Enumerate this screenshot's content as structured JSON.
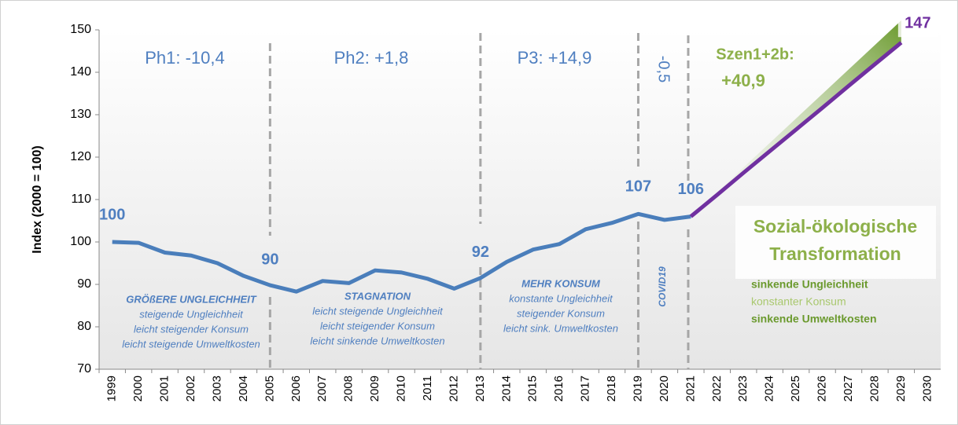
{
  "chart_data": {
    "type": "line",
    "y_label": "Index (2000 = 100)",
    "categories": [
      "1999",
      "2000",
      "2001",
      "2002",
      "2003",
      "2004",
      "2005",
      "2006",
      "2007",
      "2008",
      "2009",
      "2010",
      "2011",
      "2012",
      "2013",
      "2014",
      "2015",
      "2016",
      "2017",
      "2018",
      "2019",
      "2020",
      "2021",
      "2022",
      "2023",
      "2024",
      "2025",
      "2026",
      "2027",
      "2028",
      "2029",
      "2030"
    ],
    "series": [
      {
        "name": "Index",
        "color": "#4a7ebb",
        "values": [
          100,
          99.8,
          97.5,
          96.8,
          95,
          92,
          89.8,
          88.3,
          90.8,
          90.3,
          93.3,
          92.8,
          91.3,
          89,
          91.5,
          95.3,
          98.2,
          99.5,
          103,
          104.5,
          106.6,
          105.2,
          106,
          null,
          null,
          null,
          null,
          null,
          null,
          null,
          null,
          null
        ],
        "value_labels": [
          "100",
          null,
          null,
          null,
          null,
          null,
          "90",
          null,
          null,
          null,
          null,
          null,
          null,
          null,
          "92",
          null,
          null,
          null,
          null,
          null,
          "107",
          null,
          "106",
          null,
          null,
          null,
          null,
          null,
          null,
          null,
          null,
          null
        ]
      },
      {
        "name": "Szen1+2b",
        "color": "#7030a0",
        "values": [
          null,
          null,
          null,
          null,
          null,
          null,
          null,
          null,
          null,
          null,
          null,
          null,
          null,
          null,
          null,
          null,
          null,
          null,
          null,
          null,
          null,
          null,
          106,
          111.1,
          116.3,
          121.4,
          126.5,
          131.6,
          136.8,
          141.9,
          147,
          null
        ],
        "value_labels": [
          null,
          null,
          null,
          null,
          null,
          null,
          null,
          null,
          null,
          null,
          null,
          null,
          null,
          null,
          null,
          null,
          null,
          null,
          null,
          null,
          null,
          null,
          null,
          null,
          null,
          null,
          null,
          null,
          null,
          null,
          "147",
          null
        ]
      }
    ],
    "ylim": [
      70,
      150
    ],
    "yticks": [
      70,
      80,
      90,
      100,
      110,
      120,
      130,
      140,
      150
    ],
    "phases": [
      "Ph1: -10,4",
      "Ph2: +1,8",
      "P3: +14,9",
      "-0,5"
    ],
    "scenario": [
      "Szen1+2b:",
      "+40,9"
    ],
    "periods": [
      {
        "title": "GRÖßERE UNGLEICHHEIT",
        "lines": [
          "steigende Ungleichheit",
          "leicht steigender Konsum",
          "leicht steigende Umweltkosten"
        ]
      },
      {
        "title": "STAGNATION",
        "lines": [
          "leicht steigende Ungleichheit",
          "leicht steigender Konsum",
          "leicht sinkende Umweltkosten"
        ]
      },
      {
        "title": "MEHR KONSUM",
        "lines": [
          "konstante Ungleichheit",
          "steigender Konsum",
          "leicht sink. Umweltkosten"
        ]
      },
      {
        "title": "COVID19",
        "lines": []
      }
    ],
    "transformation": {
      "title": [
        "Sozial-ökologische",
        "Transformation"
      ],
      "lines": [
        "sinkende Ungleichheit",
        "konstanter Konsum",
        "sinkende Umweltkosten"
      ]
    }
  }
}
